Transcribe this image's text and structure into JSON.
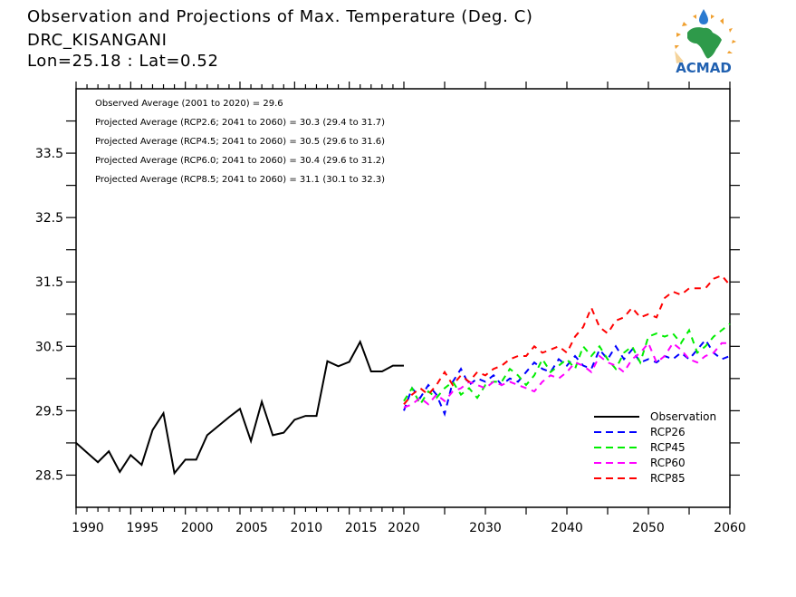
{
  "header": {
    "title": "Observation and Projections of Max. Temperature (Deg. C)",
    "station": "DRC_KISANGANI",
    "coords": "Lon=25.18 : Lat=0.52"
  },
  "logo": {
    "text": "ACMAD",
    "icon": "acmad-africa-logo"
  },
  "colors": {
    "observation": "#000000",
    "rcp26": "#0000ff",
    "rcp45": "#00ee00",
    "rcp60": "#ff00ff",
    "rcp85": "#ff0000"
  },
  "chart_data": {
    "type": "line",
    "title": "Observation and Projections of Max. Temperature (Deg. C)",
    "xlabel": "",
    "ylabel": "",
    "grid": false,
    "legend_position": "bottom-right",
    "ylim": [
      28.0,
      34.5
    ],
    "yticks": [
      "28.5",
      "29.5",
      "30.5",
      "31.5",
      "32.5",
      "33.5"
    ],
    "obs_xlim": [
      1990,
      2020
    ],
    "proj_xlim": [
      2020,
      2060
    ],
    "obs_xtick_labels": [
      "1990",
      "1995",
      "2000",
      "2005",
      "2010",
      "2015",
      "2020"
    ],
    "proj_xtick_labels": [
      "2030",
      "2040",
      "2050",
      "2060"
    ],
    "annotations": [
      "Observed Average (2001 to 2020) = 29.6",
      "Projected Average (RCP2.6; 2041 to 2060) = 30.3 (29.4 to 31.7)",
      "Projected Average (RCP4.5; 2041 to 2060) = 30.5 (29.6 to 31.6)",
      "Projected Average (RCP6.0; 2041 to 2060) = 30.4 (29.6 to 31.2)",
      "Projected Average (RCP8.5; 2041 to 2060) = 31.1 (30.1 to 32.3)"
    ],
    "legend": [
      "Observation",
      "RCP26",
      "RCP45",
      "RCP60",
      "RCP85"
    ],
    "observation": {
      "name": "Observation",
      "x": [
        1990,
        1991,
        1992,
        1993,
        1994,
        1995,
        1996,
        1997,
        1998,
        1999,
        2000,
        2001,
        2002,
        2003,
        2004,
        2005,
        2006,
        2007,
        2008,
        2009,
        2010,
        2011,
        2012,
        2013,
        2014,
        2015,
        2016,
        2017,
        2018,
        2019,
        2020
      ],
      "values": [
        29.0,
        28.85,
        28.7,
        28.87,
        28.55,
        28.81,
        28.66,
        29.2,
        29.46,
        28.53,
        28.74,
        28.74,
        29.12,
        29.26,
        29.4,
        29.53,
        29.03,
        29.64,
        29.12,
        29.16,
        29.36,
        29.42,
        29.42,
        30.27,
        30.19,
        30.26,
        30.57,
        30.11,
        30.11,
        30.2,
        30.2
      ]
    },
    "series": [
      {
        "name": "RCP26",
        "x_start": 2020,
        "values": [
          29.5,
          29.85,
          29.7,
          29.9,
          29.75,
          29.45,
          29.95,
          30.15,
          29.9,
          30.0,
          29.95,
          30.05,
          29.9,
          30.0,
          29.95,
          30.1,
          30.25,
          30.15,
          30.1,
          30.3,
          30.2,
          30.35,
          30.2,
          30.15,
          30.45,
          30.3,
          30.5,
          30.3,
          30.45,
          30.25,
          30.3,
          30.25,
          30.35,
          30.3,
          30.4,
          30.3,
          30.45,
          30.6,
          30.4,
          30.3,
          30.35
        ]
      },
      {
        "name": "RCP45",
        "x_start": 2020,
        "values": [
          29.65,
          29.85,
          29.6,
          29.8,
          29.7,
          29.85,
          29.95,
          29.75,
          29.85,
          29.7,
          29.9,
          29.95,
          29.95,
          30.15,
          30.05,
          29.9,
          30.05,
          30.3,
          30.1,
          30.2,
          30.3,
          30.15,
          30.5,
          30.35,
          30.5,
          30.3,
          30.15,
          30.4,
          30.5,
          30.25,
          30.65,
          30.7,
          30.65,
          30.7,
          30.55,
          30.75,
          30.4,
          30.5,
          30.65,
          30.75,
          30.85
        ]
      },
      {
        "name": "RCP60",
        "x_start": 2020,
        "values": [
          29.55,
          29.6,
          29.7,
          29.6,
          29.75,
          29.65,
          29.8,
          29.85,
          29.95,
          29.9,
          29.85,
          29.95,
          29.9,
          29.95,
          29.9,
          29.85,
          29.8,
          29.95,
          30.05,
          30.0,
          30.1,
          30.25,
          30.2,
          30.1,
          30.35,
          30.25,
          30.2,
          30.1,
          30.3,
          30.4,
          30.55,
          30.25,
          30.35,
          30.55,
          30.45,
          30.3,
          30.25,
          30.35,
          30.4,
          30.55,
          30.55
        ]
      },
      {
        "name": "RCP85",
        "x_start": 2020,
        "values": [
          29.6,
          29.75,
          29.85,
          29.75,
          29.9,
          30.1,
          29.9,
          30.05,
          29.95,
          30.1,
          30.05,
          30.15,
          30.2,
          30.3,
          30.35,
          30.35,
          30.5,
          30.4,
          30.45,
          30.5,
          30.4,
          30.65,
          30.8,
          31.1,
          30.8,
          30.7,
          30.9,
          30.95,
          31.1,
          30.95,
          31.0,
          30.95,
          31.25,
          31.35,
          31.3,
          31.4,
          31.4,
          31.4,
          31.55,
          31.6,
          31.45
        ]
      }
    ]
  }
}
